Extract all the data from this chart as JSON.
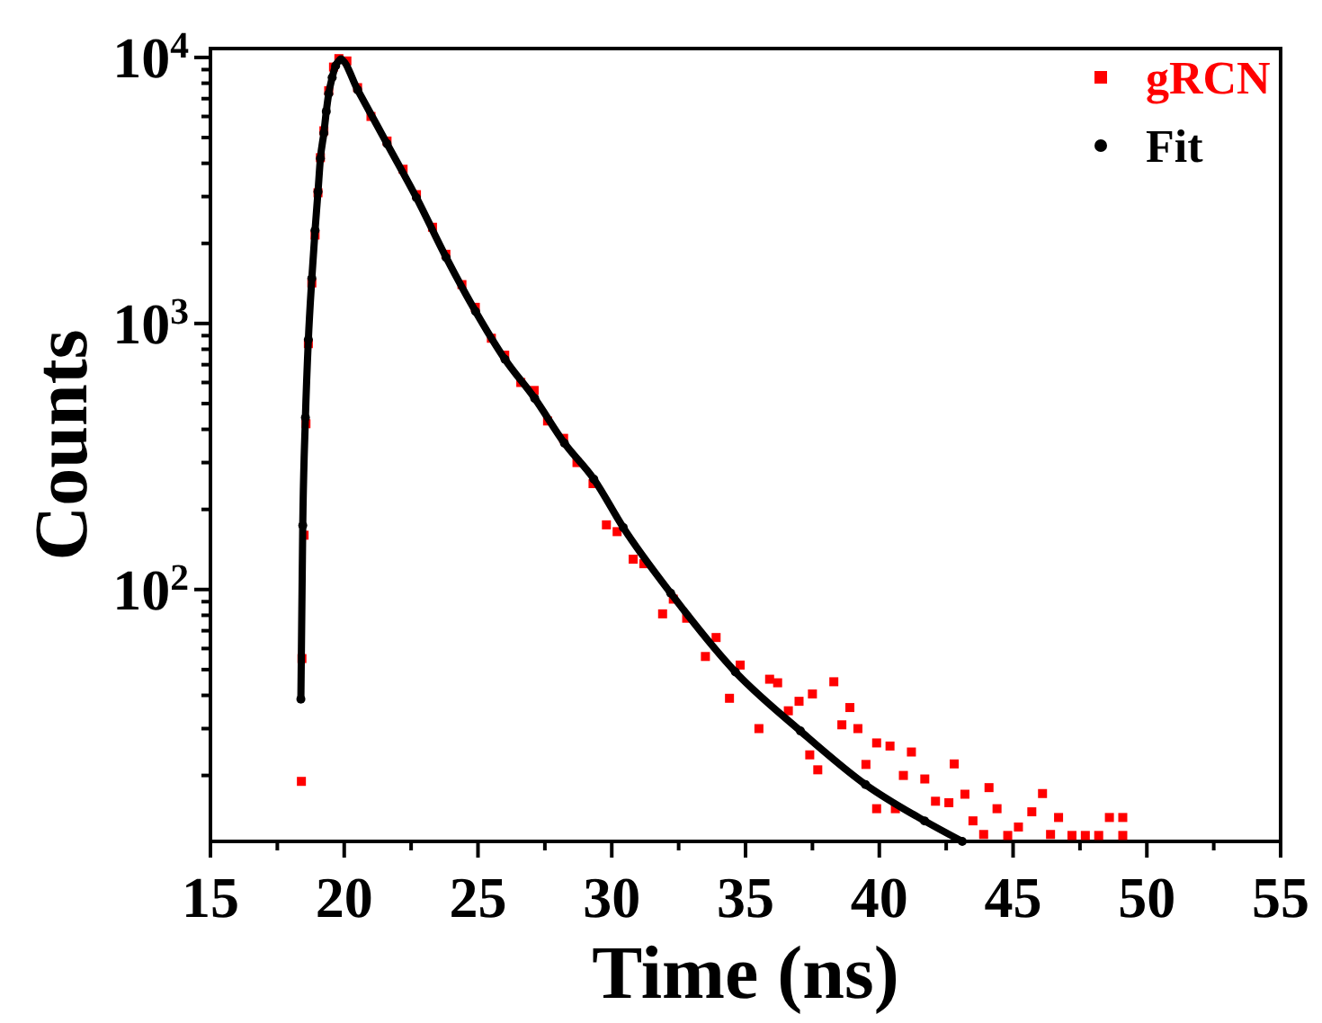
{
  "chart_data": {
    "type": "scatter",
    "xlabel": "Time (ns)",
    "ylabel": "Counts",
    "log": "y",
    "xlim": [
      15,
      55
    ],
    "xticks": [
      15,
      {
        "value": 17.5,
        "label": null
      },
      20,
      {
        "value": 22.5,
        "label": null
      },
      25,
      {
        "value": 27.5,
        "label": null
      },
      30,
      {
        "value": 32.5,
        "label": null
      },
      35,
      {
        "value": 37.5,
        "label": null
      },
      40,
      {
        "value": 42.5,
        "label": null
      },
      45,
      {
        "value": 47.5,
        "label": null
      },
      50,
      {
        "value": 52.5,
        "label": null
      },
      55
    ],
    "ylim": [
      11.3,
      10800
    ],
    "yticks": [
      {
        "value": 20,
        "label": null
      },
      {
        "value": 30,
        "label": null
      },
      {
        "value": 40,
        "label": null
      },
      {
        "value": 50,
        "label": null
      },
      {
        "value": 60,
        "label": null
      },
      {
        "value": 70,
        "label": null
      },
      {
        "value": 80,
        "label": null
      },
      {
        "value": 90,
        "label": null
      },
      {
        "value": 100,
        "label": "10$^{2}$"
      },
      {
        "value": 200,
        "label": null
      },
      {
        "value": 300,
        "label": null
      },
      {
        "value": 400,
        "label": null
      },
      {
        "value": 500,
        "label": null
      },
      {
        "value": 600,
        "label": null
      },
      {
        "value": 700,
        "label": null
      },
      {
        "value": 800,
        "label": null
      },
      {
        "value": 900,
        "label": null
      },
      {
        "value": 1000,
        "label": "10$^{3}$"
      },
      {
        "value": 2000,
        "label": null
      },
      {
        "value": 3000,
        "label": null
      },
      {
        "value": 4000,
        "label": null
      },
      {
        "value": 5000,
        "label": null
      },
      {
        "value": 6000,
        "label": null
      },
      {
        "value": 7000,
        "label": null
      },
      {
        "value": 8000,
        "label": null
      },
      {
        "value": 9000,
        "label": null
      },
      {
        "value": 10000,
        "label": "10$^{4}$"
      }
    ],
    "grid": false,
    "legend": "top right",
    "series": [
      {
        "name": "gRCN",
        "type": "scatter",
        "marker": "square",
        "color": "#ff0000",
        "x": [
          18.4,
          18.42,
          18.5,
          18.57,
          18.66,
          18.79,
          18.91,
          19.02,
          19.11,
          19.24,
          19.42,
          19.6,
          19.8,
          20.1,
          20.5,
          21,
          21.6,
          22.2,
          22.7,
          23.3,
          23.8,
          24.4,
          24.9,
          25.5,
          26,
          26.6,
          27.1,
          27.6,
          28.2,
          28.7,
          29.3,
          29.8,
          30.2,
          30.8,
          31.2,
          31.9,
          32.3,
          32.8,
          33.5,
          33.9,
          34.4,
          34.8,
          35.5,
          35.9,
          36.2,
          36.6,
          37,
          37.4,
          37.5,
          37.7,
          38.3,
          38.6,
          38.9,
          39.2,
          39.5,
          39.9,
          39.9,
          40.4,
          40.6,
          40.9,
          41.2,
          41.7,
          42.1,
          42.6,
          42.8,
          43.2,
          43.5,
          43.9,
          44.1,
          44.4,
          44.8,
          45.2,
          45.7,
          46.1,
          46.4,
          46.7,
          47.2,
          47.7,
          48.2,
          48.6,
          49.1,
          49.1
        ],
        "values": [
          19,
          55,
          160,
          420,
          840,
          1420,
          2150,
          3100,
          4200,
          5300,
          7500,
          9200,
          9900,
          9700,
          7700,
          6000,
          4850,
          3800,
          3050,
          2300,
          1820,
          1400,
          1150,
          880,
          760,
          600,
          560,
          430,
          370,
          300,
          250,
          175,
          165,
          130,
          125,
          81,
          92,
          78,
          56,
          66,
          39,
          52,
          30,
          46,
          44.6,
          35,
          38,
          23.9,
          40.5,
          21,
          45,
          31,
          36,
          30,
          22,
          26.5,
          15,
          25.8,
          15,
          20,
          24.5,
          19.4,
          16,
          15.8,
          22.1,
          17,
          13.5,
          12,
          18,
          15,
          11.9,
          12.8,
          14.6,
          17.1,
          12,
          13.9,
          11.9,
          11.9,
          11.9,
          13.9,
          11.9,
          13.9
        ]
      },
      {
        "name": "Fit",
        "type": "line",
        "marker": "circle",
        "color": "#000000",
        "x": [
          18.38,
          18.45,
          18.55,
          18.66,
          18.79,
          18.91,
          19.02,
          19.11,
          19.24,
          19.33,
          19.42,
          19.55,
          19.68,
          19.88,
          20.5,
          21.6,
          22.7,
          23.81,
          24.91,
          26.01,
          27.12,
          28.23,
          29.33,
          30.43,
          32.2,
          34.62,
          37.05,
          39.48,
          41.69,
          43.1
        ],
        "values": [
          38.7,
          174,
          443,
          870,
          1480,
          2240,
          3130,
          4170,
          5200,
          6270,
          7300,
          8400,
          9300,
          9800,
          7560,
          4740,
          2970,
          1770,
          1110,
          733,
          523,
          355,
          260,
          171,
          97,
          49,
          29.4,
          18.5,
          13.5,
          11.3
        ]
      }
    ]
  }
}
